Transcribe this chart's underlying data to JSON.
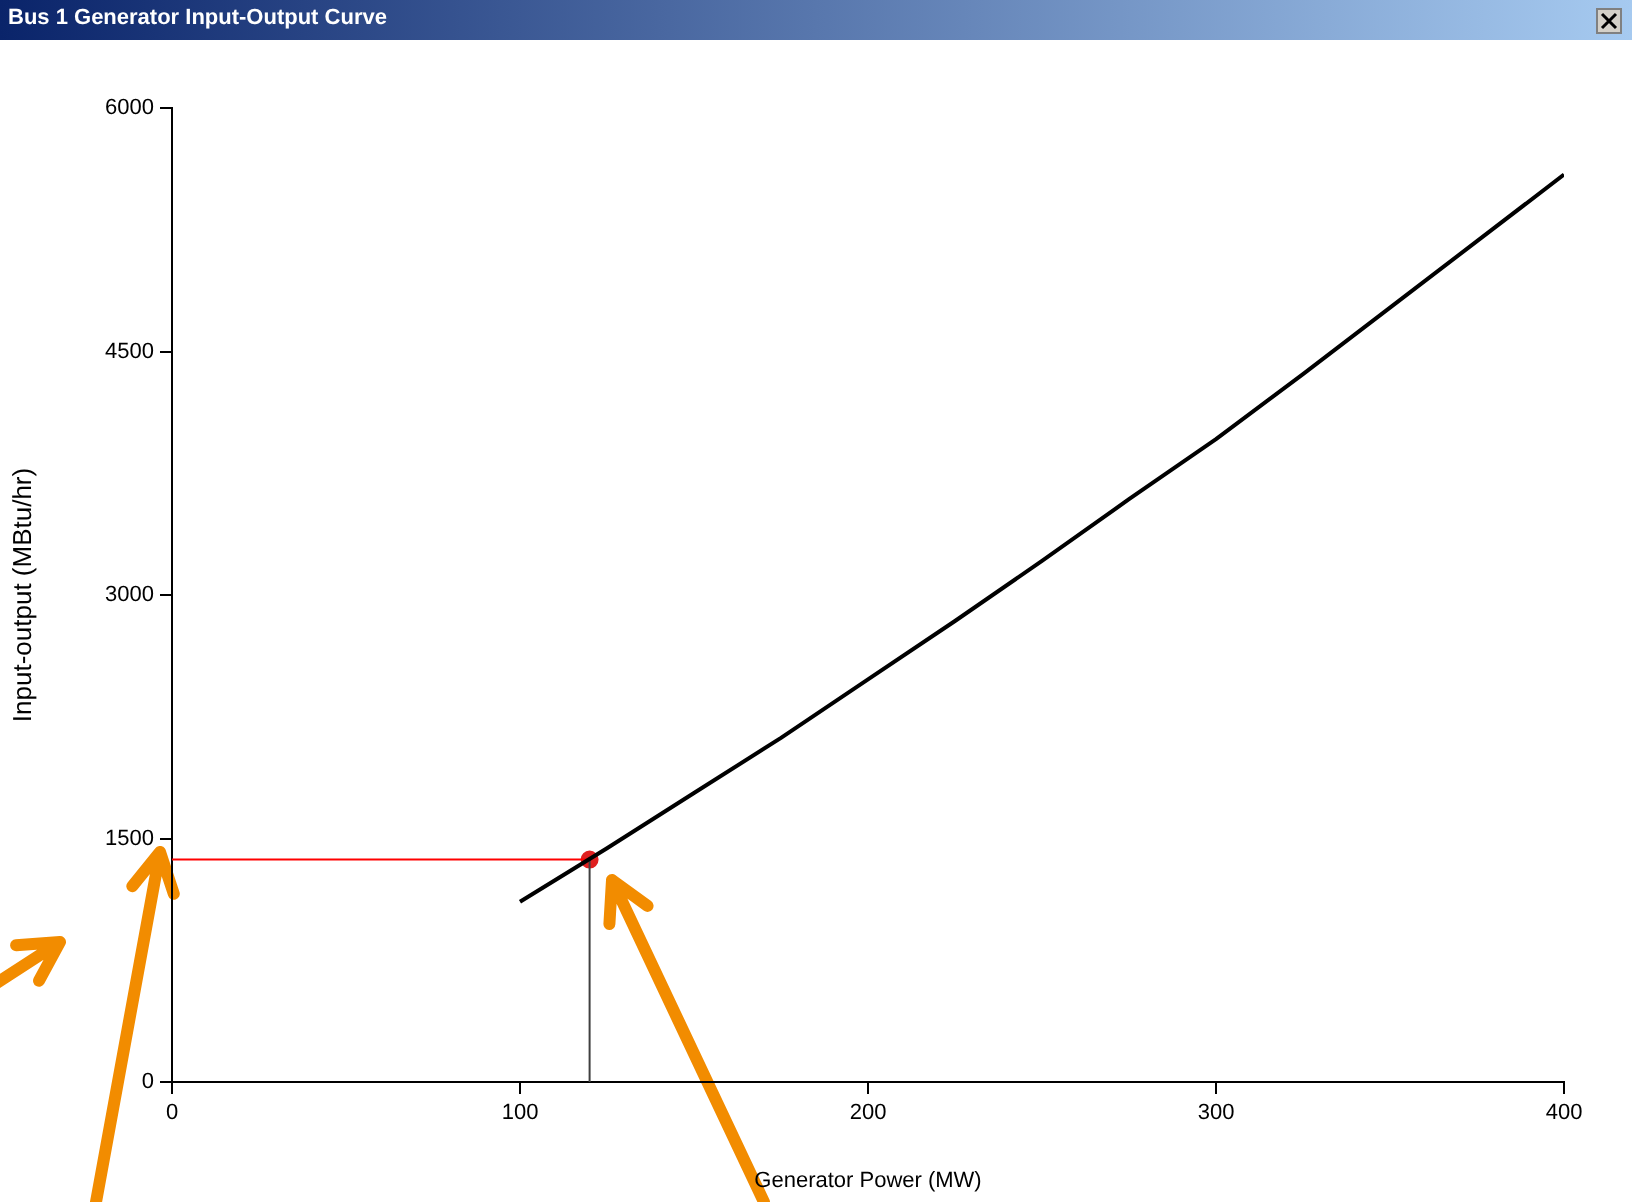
{
  "chart_data": {
    "type": "line",
    "title": "Bus 1 Generator Input-Output Curve",
    "xlabel": "Generator Power (MW)",
    "ylabel": "Input-output (MBtu/hr)",
    "xlim": [
      0,
      400
    ],
    "xticks": [
      0,
      100,
      200,
      300,
      400
    ],
    "ylim": [
      0,
      6000
    ],
    "yticks": [
      0,
      1500,
      3000,
      4500,
      6000
    ],
    "grid": false,
    "legend": false,
    "line_style": "solid",
    "series": [
      {
        "color": "#000000",
        "x": [
          100,
          125,
          150,
          175,
          200,
          225,
          250,
          275,
          300,
          325,
          350,
          375,
          400
        ],
        "values": [
          1110,
          1440,
          1780,
          2120,
          2480,
          2840,
          3210,
          3590,
          3960,
          4360,
          4770,
          5180,
          5590
        ]
      },
      {
        "color": "#ff0000",
        "x": [
          0,
          120
        ],
        "values": [
          1370,
          1370
        ]
      },
      {
        "color": "#404040",
        "x": [
          120,
          120
        ],
        "values": [
          0,
          1370
        ]
      },
      {
        "type": "scatter",
        "color": "#e02020",
        "marker": "circle",
        "x": [
          120
        ],
        "values": [
          1370
        ]
      }
    ]
  }
}
